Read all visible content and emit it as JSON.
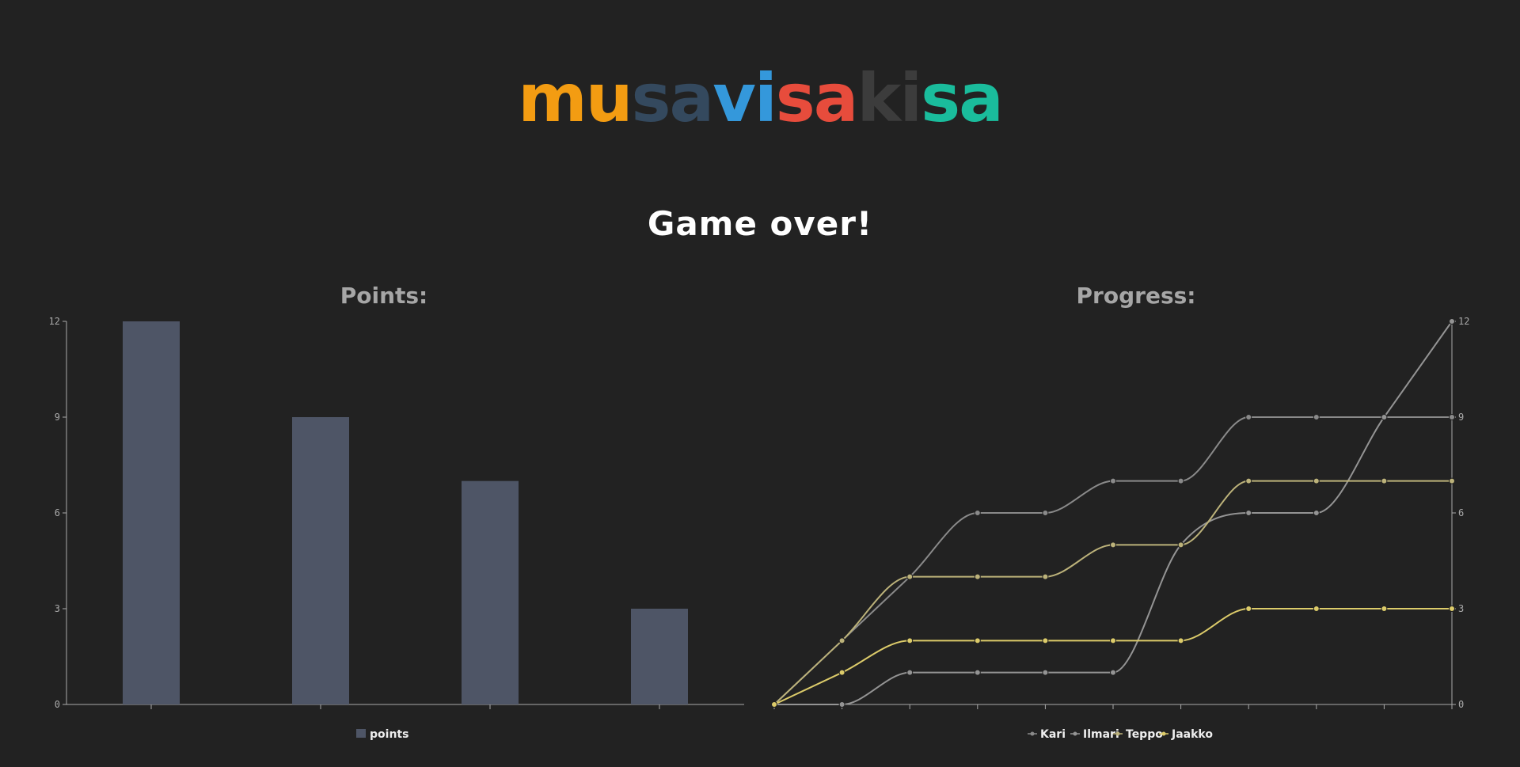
{
  "logo": {
    "parts": [
      {
        "text": "mu",
        "color": "#F39C12"
      },
      {
        "text": "sa",
        "color": "#34495E"
      },
      {
        "text": "vi",
        "color": "#3498DB"
      },
      {
        "text": "sa",
        "color": "#E74C3C"
      },
      {
        "text": "ki",
        "color": "#3C3C3C"
      },
      {
        "text": "sa",
        "color": "#1ABC9C"
      }
    ]
  },
  "headline": "Game over!",
  "chart_data": [
    {
      "type": "bar",
      "title": "Points:",
      "categories": [
        "",
        "",
        "",
        ""
      ],
      "series": [
        {
          "name": "points",
          "values": [
            12,
            9,
            7,
            3
          ],
          "color": "#4E5566"
        }
      ],
      "ylim": [
        0,
        12
      ],
      "yticks": [
        "0",
        "3",
        "6",
        "9",
        "12"
      ],
      "legend_position": "bottom-center",
      "grid": false
    },
    {
      "type": "line",
      "title": "Progress:",
      "x": [
        0,
        1,
        2,
        3,
        4,
        5,
        6,
        7,
        8,
        9,
        10
      ],
      "series": [
        {
          "name": "Kari",
          "values": [
            0,
            2,
            4,
            6,
            6,
            7,
            7,
            9,
            9,
            9,
            9
          ],
          "color": "#8A8A8A"
        },
        {
          "name": "Ilmari",
          "values": [
            0,
            0,
            1,
            1,
            1,
            1,
            5,
            6,
            6,
            9,
            12
          ],
          "color": "#949494"
        },
        {
          "name": "Teppo",
          "values": [
            0,
            2,
            4,
            4,
            4,
            5,
            5,
            7,
            7,
            7,
            7
          ],
          "color": "#BCB27A"
        },
        {
          "name": "Jaakko",
          "values": [
            0,
            1,
            2,
            2,
            2,
            2,
            2,
            3,
            3,
            3,
            3
          ],
          "color": "#DCCB6A"
        }
      ],
      "ylim": [
        0,
        12
      ],
      "yticks": [
        "0",
        "3",
        "6",
        "9",
        "12"
      ],
      "y_axis_side": "right",
      "legend_position": "bottom-center",
      "grid": false
    }
  ]
}
